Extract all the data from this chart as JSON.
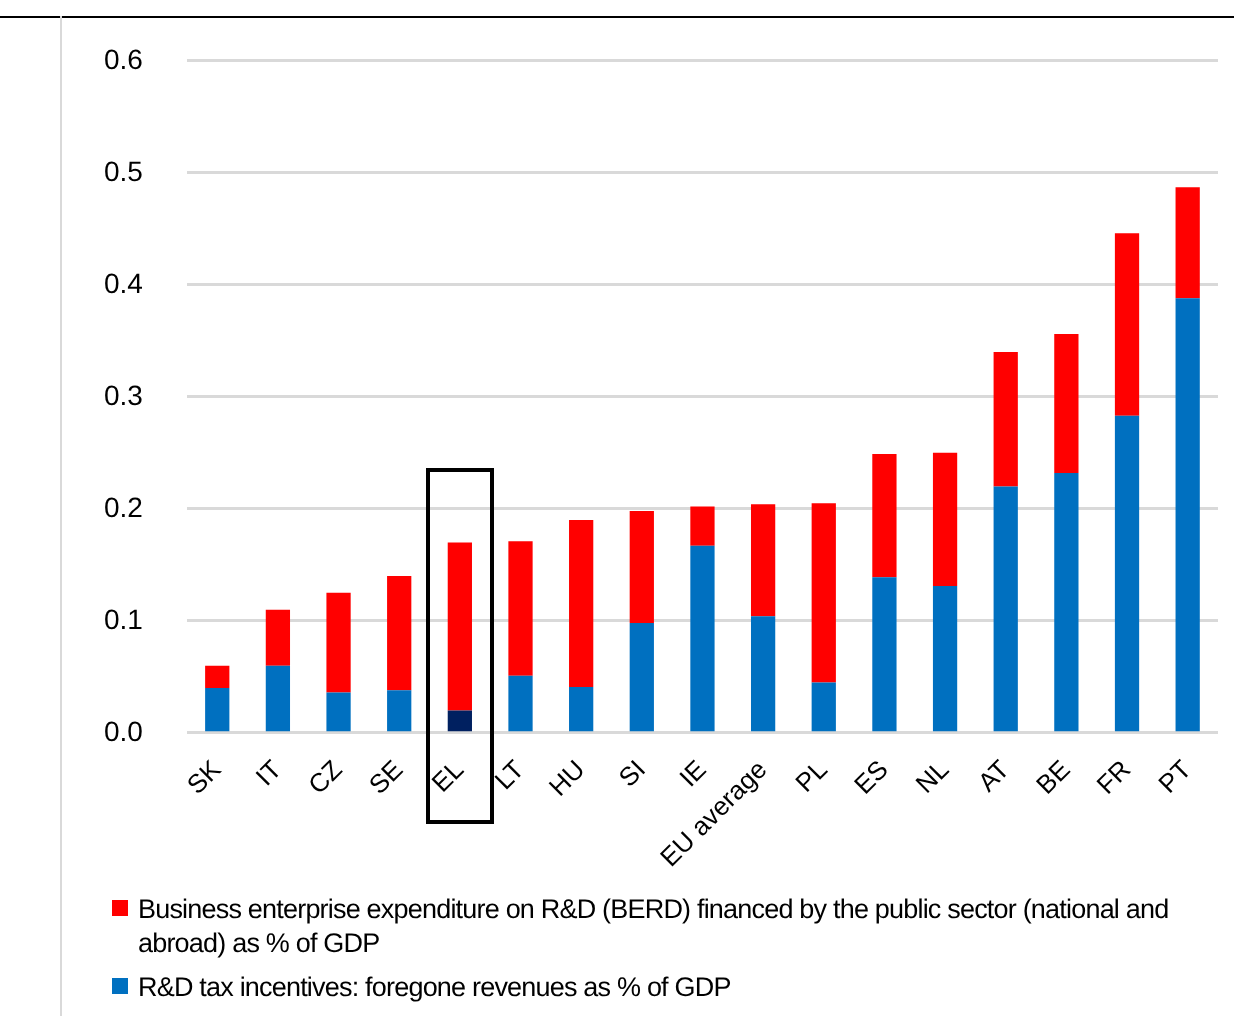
{
  "chart_data": {
    "type": "bar",
    "stacked": true,
    "categories": [
      "SK",
      "IT",
      "CZ",
      "SE",
      "EL",
      "LT",
      "HU",
      "SI",
      "IE",
      "EU average",
      "PL",
      "ES",
      "NL",
      "AT",
      "BE",
      "FR",
      "PT"
    ],
    "series": [
      {
        "name": "R&D tax incentives: foregone revenues as % of GDP",
        "color": "#0070c0",
        "colors": [
          "#0070c0",
          "#0070c0",
          "#0070c0",
          "#0070c0",
          "#002060",
          "#0070c0",
          "#0070c0",
          "#0070c0",
          "#0070c0",
          "#0070c0",
          "#0070c0",
          "#0070c0",
          "#0070c0",
          "#0070c0",
          "#0070c0",
          "#0070c0",
          "#0070c0"
        ],
        "values": [
          0.04,
          0.06,
          0.036,
          0.038,
          0.02,
          0.051,
          0.041,
          0.098,
          0.167,
          0.104,
          0.045,
          0.139,
          0.131,
          0.22,
          0.232,
          0.283,
          0.388
        ]
      },
      {
        "name": "Business enterprise expenditure on R&D (BERD) financed by the public sector (national and abroad) as % of GDP",
        "color": "#ff0000",
        "values": [
          0.02,
          0.05,
          0.089,
          0.102,
          0.15,
          0.12,
          0.149,
          0.1,
          0.035,
          0.1,
          0.16,
          0.11,
          0.119,
          0.12,
          0.124,
          0.163,
          0.099
        ]
      }
    ],
    "ylim": [
      0,
      0.6
    ],
    "yticks": [
      {
        "value": 0,
        "label": "0.0"
      },
      {
        "value": 0.1,
        "label": "0.1"
      },
      {
        "value": 0.2,
        "label": "0.2"
      },
      {
        "value": 0.3,
        "label": "0.3"
      },
      {
        "value": 0.4,
        "label": "0.4"
      },
      {
        "value": 0.5,
        "label": "0.5"
      },
      {
        "value": 0.6,
        "label": "0.6"
      }
    ],
    "grid": "y",
    "legend": "bottom"
  }
}
